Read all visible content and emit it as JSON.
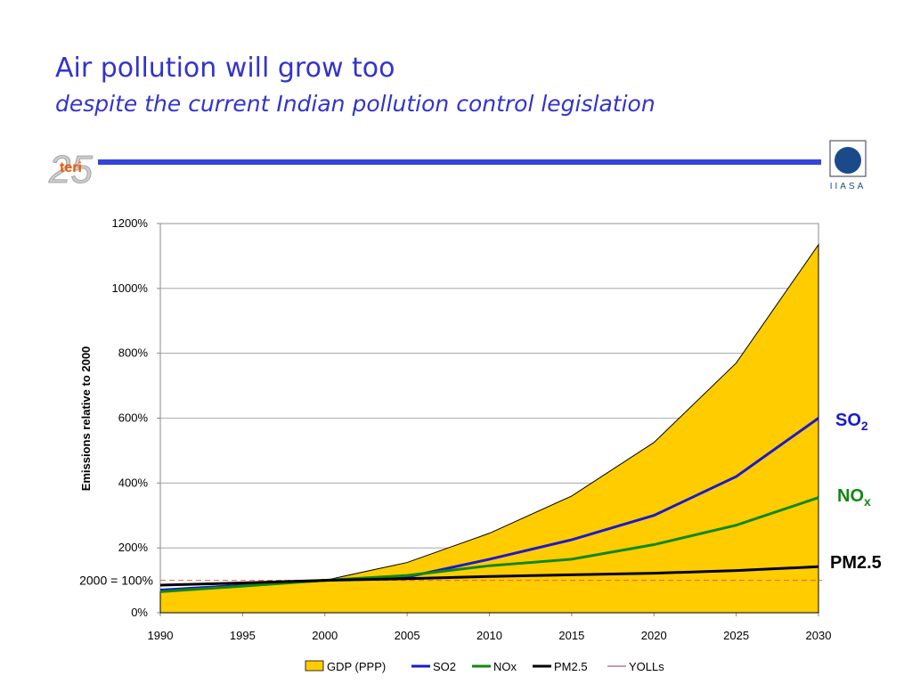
{
  "title": "Air pollution will grow too",
  "subtitle": "despite the current Indian pollution control legislation",
  "logos": {
    "left": "teri",
    "left_number": "25",
    "right": "IIASA"
  },
  "chart_data": {
    "type": "area-line",
    "ylabel": "Emissions relative to 2000",
    "x": [
      1990,
      1995,
      2000,
      2005,
      2010,
      2015,
      2020,
      2025,
      2030
    ],
    "xlim": [
      1990,
      2030
    ],
    "xticks": [
      1990,
      1995,
      2000,
      2005,
      2010,
      2015,
      2020,
      2025,
      2030
    ],
    "ylim": [
      0,
      1200
    ],
    "yticks": [
      {
        "value": 0,
        "label": "0%"
      },
      {
        "value": 200,
        "label": "200%"
      },
      {
        "value": 400,
        "label": "400%"
      },
      {
        "value": 600,
        "label": "600%"
      },
      {
        "value": 800,
        "label": "800%"
      },
      {
        "value": 1000,
        "label": "1000%"
      },
      {
        "value": 1200,
        "label": "1200%"
      }
    ],
    "grid": true,
    "reference_line": {
      "value": 100,
      "label": "2000 = 100%",
      "color": "#e06050"
    },
    "series": [
      {
        "name": "GDP (PPP)",
        "kind": "area",
        "color": "#ffcc00",
        "values": [
          65,
          85,
          100,
          155,
          245,
          360,
          525,
          770,
          1135
        ]
      },
      {
        "name": "SO2",
        "kind": "line",
        "color": "#1a1acc",
        "values": [
          70,
          85,
          100,
          110,
          165,
          225,
          300,
          420,
          600
        ]
      },
      {
        "name": "NOx",
        "kind": "line",
        "color": "#118811",
        "values": [
          65,
          82,
          100,
          115,
          145,
          165,
          210,
          270,
          355
        ]
      },
      {
        "name": "PM2.5",
        "kind": "line",
        "color": "#000000",
        "values": [
          85,
          92,
          100,
          105,
          112,
          117,
          122,
          130,
          142
        ]
      },
      {
        "name": "YOLLs",
        "kind": "line",
        "color": "#993366",
        "values": [
          null,
          null,
          null,
          null,
          null,
          null,
          null,
          null,
          null
        ]
      }
    ],
    "annotations": [
      {
        "text": "SO",
        "sub": "2",
        "color": "#1a1acc"
      },
      {
        "text": "NO",
        "sub": "x",
        "color": "#118811"
      },
      {
        "text": "PM2.5",
        "sub": null,
        "color": "#000000"
      }
    ]
  }
}
